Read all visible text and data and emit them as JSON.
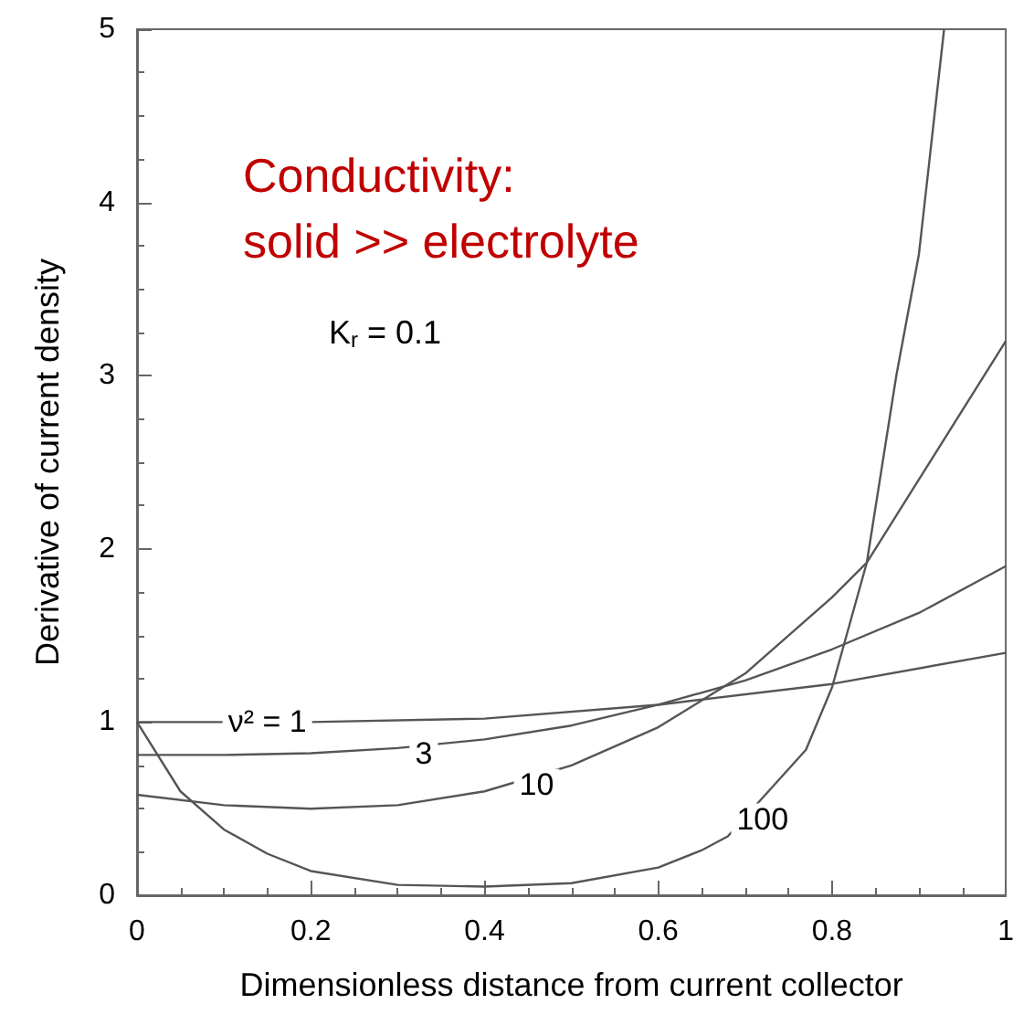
{
  "chart_data": {
    "type": "line",
    "title": "Conductivity:\nsolid >> electrolyte",
    "xlabel": "Dimensionless distance from current collector",
    "ylabel": "Derivative of current density",
    "annotations": [
      "K$_{r}$ = 0.1",
      {
        "text": "ν² = 1",
        "x": 0.15,
        "y": 1.0
      },
      {
        "text": "3",
        "x": 0.33,
        "y": 0.82
      },
      {
        "text": "10",
        "x": 0.46,
        "y": 0.64
      },
      {
        "text": "100",
        "x": 0.72,
        "y": 0.44
      }
    ],
    "series": [
      {
        "color": "#555555",
        "x": [
          0,
          0.2,
          0.4,
          0.6,
          0.8,
          1
        ],
        "values": [
          1.0,
          1.0,
          1.02,
          1.1,
          1.22,
          1.4
        ]
      },
      {
        "color": "#555555",
        "x": [
          0,
          0.1,
          0.2,
          0.3,
          0.4,
          0.5,
          0.6,
          0.7,
          0.8,
          0.9,
          1
        ],
        "values": [
          0.81,
          0.81,
          0.82,
          0.85,
          0.9,
          0.98,
          1.1,
          1.24,
          1.42,
          1.63,
          1.9
        ]
      },
      {
        "color": "#555555",
        "x": [
          0,
          0.1,
          0.2,
          0.3,
          0.4,
          0.5,
          0.6,
          0.7,
          0.8,
          0.84,
          0.9,
          1
        ],
        "values": [
          0.58,
          0.52,
          0.5,
          0.52,
          0.6,
          0.75,
          0.97,
          1.28,
          1.72,
          1.92,
          2.4,
          3.2
        ]
      },
      {
        "color": "#555555",
        "x": [
          0,
          0.05,
          0.1,
          0.15,
          0.2,
          0.3,
          0.4,
          0.5,
          0.6,
          0.65,
          0.68,
          0.77,
          0.8,
          0.84,
          0.874,
          0.9,
          0.929
        ],
        "values": [
          1.0,
          0.6,
          0.38,
          0.24,
          0.14,
          0.06,
          0.05,
          0.07,
          0.16,
          0.26,
          0.34,
          0.84,
          1.2,
          1.92,
          3.0,
          3.7,
          5.0
        ]
      }
    ],
    "xlim": [
      0,
      1
    ],
    "xticks": [
      0,
      0.2,
      0.4,
      0.6,
      0.8,
      1
    ],
    "ylim": [
      0,
      5
    ],
    "yticks": [
      0,
      1,
      2,
      3,
      4,
      5
    ],
    "grid": false,
    "marker": "none",
    "line_style": "solid"
  }
}
